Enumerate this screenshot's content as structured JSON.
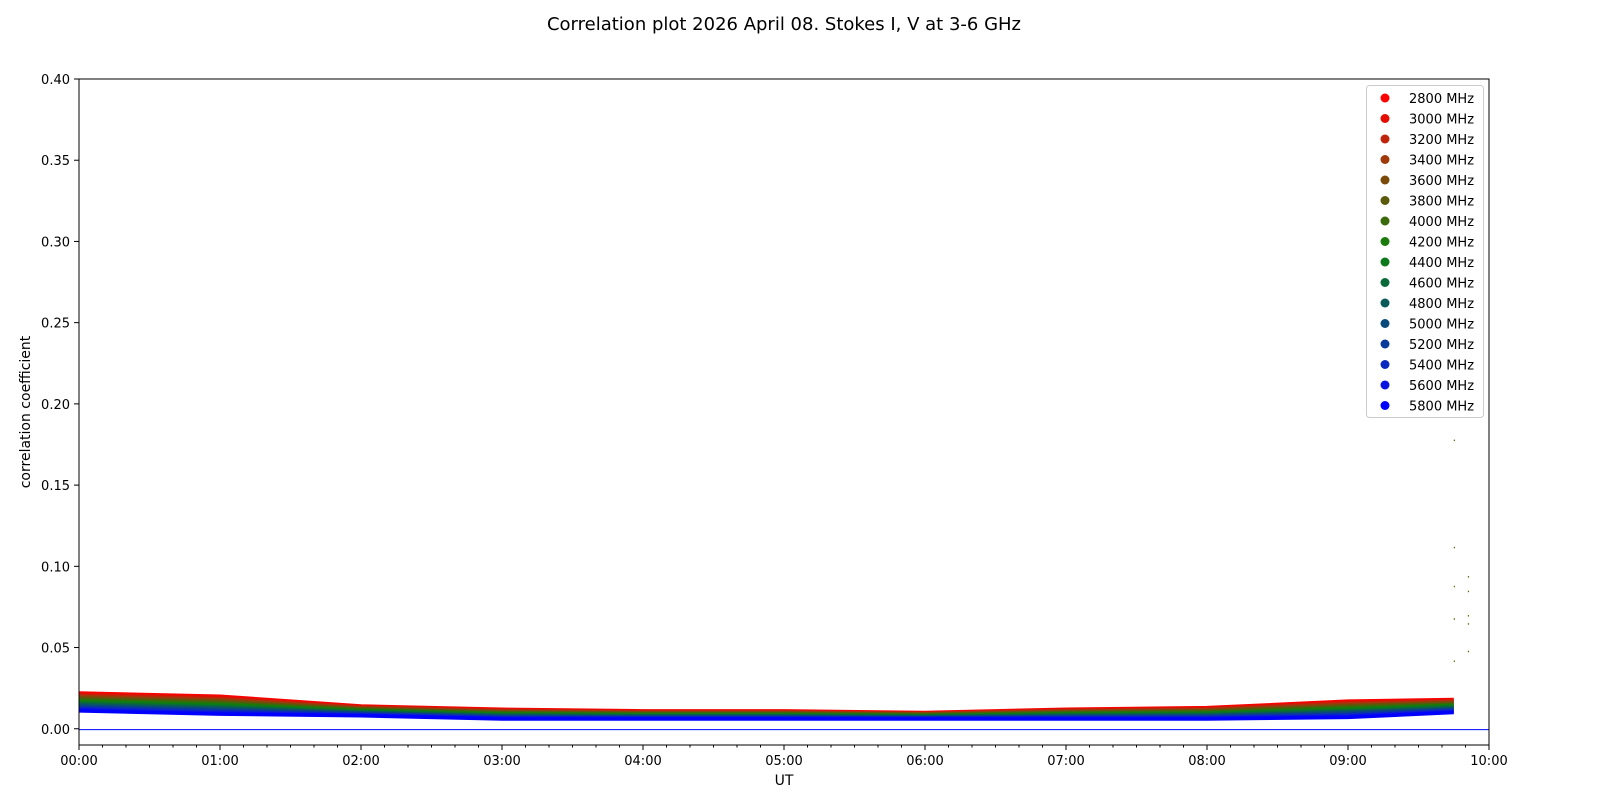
{
  "chart_data": {
    "type": "line",
    "title": "Correlation plot 2026 April 08. Stokes I, V at 3-6 GHz",
    "xlabel": "UT",
    "ylabel": "correlation coefficient",
    "xlim": [
      "00:00",
      "10:00"
    ],
    "ylim": [
      -0.01,
      0.4
    ],
    "x_ticks": [
      "00:00",
      "01:00",
      "02:00",
      "03:00",
      "04:00",
      "05:00",
      "06:00",
      "07:00",
      "08:00",
      "09:00",
      "10:00"
    ],
    "y_ticks": [
      "0.00",
      "0.05",
      "0.10",
      "0.15",
      "0.20",
      "0.25",
      "0.30",
      "0.35",
      "0.40"
    ],
    "grid": false,
    "legend_position": "top-right",
    "x": [
      "00:00",
      "01:00",
      "02:00",
      "03:00",
      "04:00",
      "05:00",
      "06:00",
      "07:00",
      "08:00",
      "09:00",
      "09:45"
    ],
    "series": [
      {
        "name": "2800 MHz",
        "color": "#ff0000",
        "values": [
          0.022,
          0.02,
          0.014,
          0.012,
          0.011,
          0.011,
          0.01,
          0.012,
          0.013,
          0.017,
          0.018
        ]
      },
      {
        "name": "3000 MHz",
        "color": "#e50c00",
        "values": [
          0.0213,
          0.0193,
          0.0136,
          0.0116,
          0.0107,
          0.0107,
          0.0097,
          0.0116,
          0.0125,
          0.0163,
          0.0175
        ]
      },
      {
        "name": "3200 MHz",
        "color": "#c0240a",
        "values": [
          0.0205,
          0.0185,
          0.0132,
          0.0112,
          0.0103,
          0.0103,
          0.0095,
          0.0112,
          0.0121,
          0.0157,
          0.0169
        ]
      },
      {
        "name": "3400 MHz",
        "color": "#a03a0a",
        "values": [
          0.0198,
          0.0178,
          0.0128,
          0.0108,
          0.01,
          0.01,
          0.0092,
          0.0108,
          0.0116,
          0.015,
          0.0164
        ]
      },
      {
        "name": "3600 MHz",
        "color": "#7a4a0a",
        "values": [
          0.0191,
          0.0171,
          0.0124,
          0.0104,
          0.0097,
          0.0097,
          0.0089,
          0.0104,
          0.0111,
          0.0143,
          0.0159
        ]
      },
      {
        "name": "3800 MHz",
        "color": "#5a5a0a",
        "values": [
          0.0183,
          0.0163,
          0.012,
          0.01,
          0.0093,
          0.0093,
          0.0087,
          0.01,
          0.0107,
          0.0137,
          0.0153
        ]
      },
      {
        "name": "4000 MHz",
        "color": "#3a6a0a",
        "values": [
          0.0176,
          0.0156,
          0.0116,
          0.0096,
          0.009,
          0.009,
          0.0084,
          0.0096,
          0.0102,
          0.013,
          0.0148
        ]
      },
      {
        "name": "4200 MHz",
        "color": "#1a7a0a",
        "values": [
          0.0169,
          0.0149,
          0.0112,
          0.0092,
          0.0087,
          0.0087,
          0.0081,
          0.0092,
          0.0097,
          0.0123,
          0.0143
        ]
      },
      {
        "name": "4400 MHz",
        "color": "#0a7a1a",
        "values": [
          0.0161,
          0.0141,
          0.0108,
          0.0088,
          0.0083,
          0.0083,
          0.0079,
          0.0088,
          0.0093,
          0.0117,
          0.0137
        ]
      },
      {
        "name": "4600 MHz",
        "color": "#0a6a3a",
        "values": [
          0.0154,
          0.0134,
          0.0104,
          0.0084,
          0.008,
          0.008,
          0.0076,
          0.0084,
          0.0088,
          0.011,
          0.0132
        ]
      },
      {
        "name": "4800 MHz",
        "color": "#0a5a5a",
        "values": [
          0.0147,
          0.0127,
          0.01,
          0.008,
          0.0077,
          0.0077,
          0.0073,
          0.008,
          0.0083,
          0.0103,
          0.0127
        ]
      },
      {
        "name": "5000 MHz",
        "color": "#0a4a7a",
        "values": [
          0.0139,
          0.0119,
          0.0096,
          0.0076,
          0.0073,
          0.0073,
          0.0071,
          0.0076,
          0.0079,
          0.0097,
          0.0121
        ]
      },
      {
        "name": "5200 MHz",
        "color": "#0a3a9a",
        "values": [
          0.0132,
          0.0112,
          0.0092,
          0.0072,
          0.007,
          0.007,
          0.0068,
          0.0072,
          0.0074,
          0.009,
          0.0116
        ]
      },
      {
        "name": "5400 MHz",
        "color": "#0a2abf",
        "values": [
          0.0125,
          0.0105,
          0.0088,
          0.0068,
          0.0067,
          0.0067,
          0.0065,
          0.0068,
          0.0069,
          0.0083,
          0.0111
        ]
      },
      {
        "name": "5600 MHz",
        "color": "#0a14e0",
        "values": [
          0.0117,
          0.0097,
          0.0084,
          0.0064,
          0.0063,
          0.0063,
          0.0063,
          0.0064,
          0.0065,
          0.0077,
          0.0105
        ]
      },
      {
        "name": "5800 MHz",
        "color": "#0000ff",
        "values": [
          0.011,
          0.009,
          0.008,
          0.006,
          0.006,
          0.006,
          0.006,
          0.006,
          0.006,
          0.007,
          0.01
        ]
      }
    ],
    "stokes_v": {
      "color": "#0000ff",
      "x": [
        "00:00",
        "10:00"
      ],
      "values": [
        -0.0005,
        -0.0005
      ]
    },
    "outliers": [
      {
        "x": "09:45",
        "values": [
          0.178,
          0.112,
          0.088,
          0.068,
          0.042
        ]
      },
      {
        "x": "09:51",
        "values": [
          0.094,
          0.085,
          0.07,
          0.065,
          0.048
        ]
      }
    ]
  }
}
